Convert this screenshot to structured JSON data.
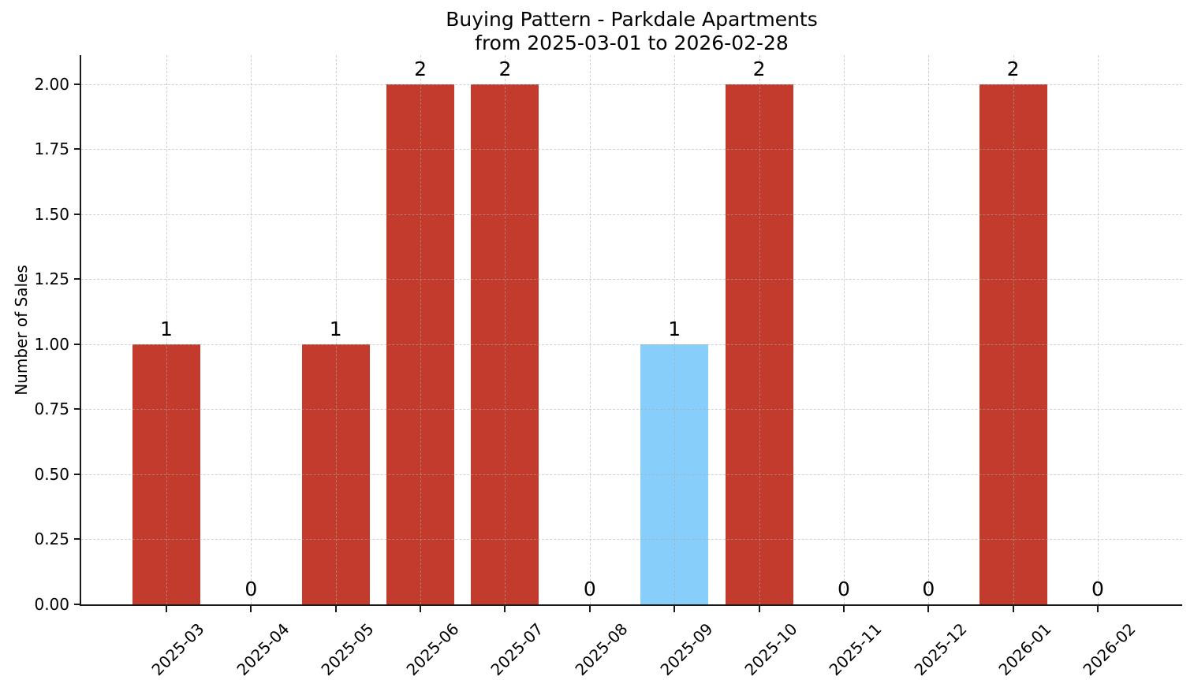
{
  "chart_data": {
    "type": "bar",
    "title": "Buying Pattern - Parkdale Apartments",
    "subtitle": "from 2025-03-01 to 2026-02-28",
    "xlabel": "",
    "ylabel": "Number of Sales",
    "categories": [
      "2025-03",
      "2025-04",
      "2025-05",
      "2025-06",
      "2025-07",
      "2025-08",
      "2025-09",
      "2025-10",
      "2025-11",
      "2025-12",
      "2026-01",
      "2026-02"
    ],
    "values": [
      1,
      0,
      1,
      2,
      2,
      0,
      1,
      2,
      0,
      0,
      2,
      0
    ],
    "value_labels": [
      "1",
      "0",
      "1",
      "2",
      "2",
      "0",
      "1",
      "2",
      "0",
      "0",
      "2",
      "0"
    ],
    "default_bar_color": "#c33b2c",
    "highlight_bar_color": "#87cefa",
    "highlight_index": 6,
    "bar_colors": [
      "#c33b2c",
      "#c33b2c",
      "#c33b2c",
      "#c33b2c",
      "#c33b2c",
      "#c33b2c",
      "#87cefa",
      "#c33b2c",
      "#c33b2c",
      "#c33b2c",
      "#c33b2c",
      "#c33b2c"
    ],
    "ylim": [
      0,
      2.112
    ],
    "yticks": [
      0,
      0.25,
      0.5,
      0.75,
      1,
      1.25,
      1.5,
      1.75,
      2
    ],
    "ytick_labels": [
      "0.00",
      "0.25",
      "0.50",
      "0.75",
      "1.00",
      "1.25",
      "1.50",
      "1.75",
      "2.00"
    ],
    "xtick_rotation": 45,
    "grid": true,
    "grid_linestyle": "dashed",
    "grid_over_bars": true,
    "legend_position": "none",
    "value_labels_shown": true
  }
}
